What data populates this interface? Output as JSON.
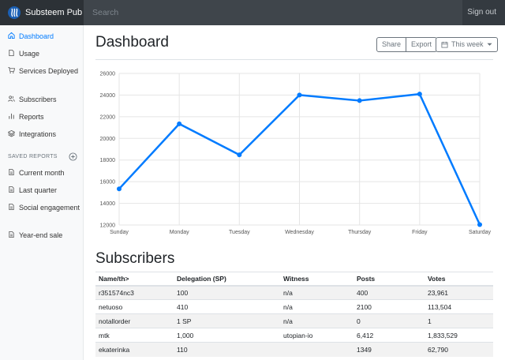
{
  "navbar": {
    "brand": "Substeem Pub",
    "search_placeholder": "Search",
    "signout": "Sign out"
  },
  "sidebar": {
    "items": [
      {
        "label": "Dashboard",
        "icon": "home-icon",
        "active": true
      },
      {
        "label": "Usage",
        "icon": "file-icon"
      },
      {
        "label": "Services Deployed",
        "icon": "shopping-cart-icon"
      },
      {
        "label": "Subscribers",
        "icon": "users-icon"
      },
      {
        "label": "Reports",
        "icon": "bar-chart-icon"
      },
      {
        "label": "Integrations",
        "icon": "layers-icon"
      }
    ],
    "saved_heading": "SAVED REPORTS",
    "saved_items": [
      {
        "label": "Current month",
        "icon": "file-text-icon"
      },
      {
        "label": "Last quarter",
        "icon": "file-text-icon"
      },
      {
        "label": "Social engagement",
        "icon": "file-text-icon"
      },
      {
        "label": "Year-end sale",
        "icon": "file-text-icon"
      }
    ]
  },
  "main": {
    "title": "Dashboard",
    "share_label": "Share",
    "export_label": "Export",
    "range_label": "This week",
    "subscribers_title": "Subscribers"
  },
  "chart_data": {
    "type": "line",
    "categories": [
      "Sunday",
      "Monday",
      "Tuesday",
      "Wednesday",
      "Thursday",
      "Friday",
      "Saturday"
    ],
    "series": [
      {
        "values": [
          15339,
          21345,
          18483,
          24003,
          23489,
          24092,
          12034
        ]
      }
    ],
    "ylim": [
      12000,
      26000
    ],
    "yticks": [
      12000,
      14000,
      16000,
      18000,
      20000,
      22000,
      24000,
      26000
    ],
    "grid": true,
    "color": "#007bff"
  },
  "table": {
    "headers": [
      "Name/th>",
      "Delegation (SP)",
      "Witness",
      "Posts",
      "Votes"
    ],
    "rows": [
      [
        "r351574nc3",
        "100",
        "n/a",
        "400",
        "23,961"
      ],
      [
        "netuoso",
        "410",
        "n/a",
        "2100",
        "113,504"
      ],
      [
        "notallorder",
        "1 SP",
        "n/a",
        "0",
        "1"
      ],
      [
        "mtk",
        "1,000",
        "utopian-io",
        "6,412",
        "1,833,529"
      ],
      [
        "ekaterinka",
        "110",
        "",
        "1349",
        "62,790"
      ]
    ]
  }
}
